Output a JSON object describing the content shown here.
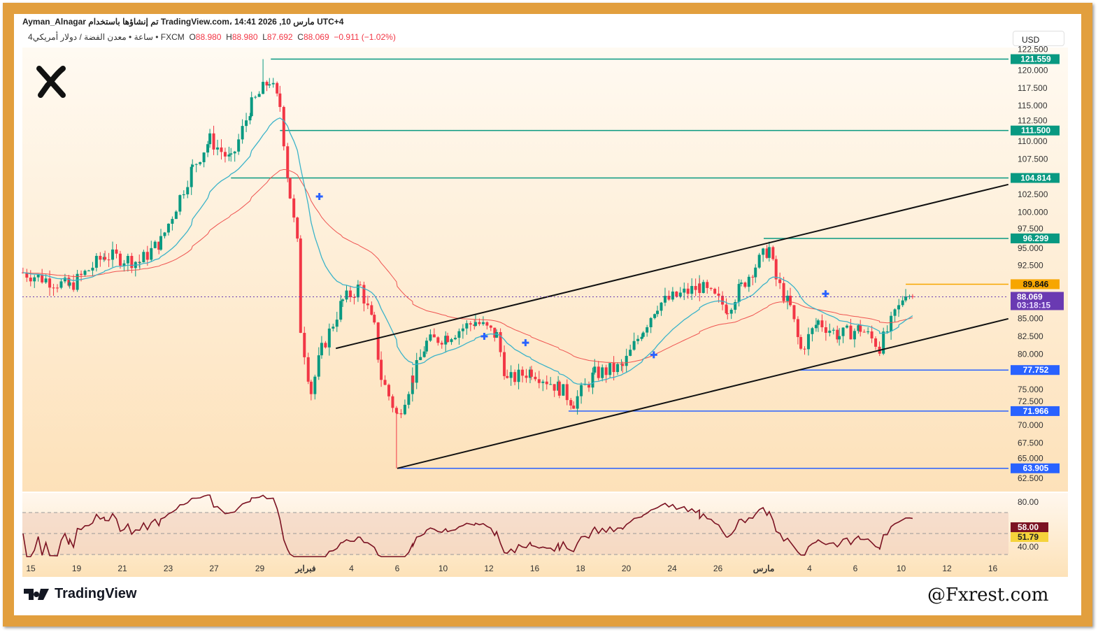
{
  "header": {
    "line1": "Ayman_Alnagar تم إنشاؤها باستخدام TradingView.com، 14:41 2026 ,10 مارس UTC+4",
    "symbol": "4ساعة • معدن الفضة / دولار أمريكي • FXCM",
    "open_label": "O",
    "open": "88.980",
    "high_label": "H",
    "high": "88.980",
    "low_label": "L",
    "low": "87.692",
    "close_label": "C",
    "close": "88.069",
    "change": "−0.911 (−1.02%)"
  },
  "currency": "USD",
  "footer": {
    "brand": "TradingView",
    "watermark": "@Fxrest.com"
  },
  "colors": {
    "up": "#089981",
    "down": "#f23645",
    "ema_fast": "#3bb3c9",
    "ema_slow": "#ef5350",
    "resistance": "#089981",
    "support": "#2962ff",
    "current": "#6a3ab2",
    "rsi": "#7b1222",
    "frame": "#e29f3e"
  },
  "chart_data": {
    "type": "candlestick",
    "x_tick_labels": [
      "15",
      "19",
      "21",
      "23",
      "27",
      "29",
      "فبراير",
      "4",
      "6",
      "10",
      "12",
      "16",
      "18",
      "20",
      "24",
      "26",
      "مارس",
      "4",
      "6",
      "10",
      "12",
      "16"
    ],
    "y_ticks": [
      "122.500",
      "120.000",
      "117.500",
      "115.000",
      "112.500",
      "110.000",
      "107.500",
      "102.500",
      "100.000",
      "97.500",
      "95.000",
      "92.500",
      "85.000",
      "82.500",
      "80.000",
      "75.000",
      "72.500",
      "70.000",
      "67.500",
      "65.000",
      "62.500"
    ],
    "ylim": [
      62.5,
      122.5
    ],
    "price_path_note_x_unit": "x-tick index",
    "price_path": [
      [
        -0.17,
        91.5
      ],
      [
        0.85,
        89.5
      ],
      [
        1.62,
        93.9
      ],
      [
        2.38,
        93
      ],
      [
        2.84,
        95.9
      ],
      [
        3.53,
        106.2
      ],
      [
        3.91,
        110.2
      ],
      [
        4.37,
        107.2
      ],
      [
        4.82,
        115.1
      ],
      [
        5.21,
        118.6
      ],
      [
        5.44,
        115
      ],
      [
        5.66,
        102.3
      ],
      [
        5.82,
        95.4
      ],
      [
        5.89,
        83.6
      ],
      [
        6.12,
        74.7
      ],
      [
        6.35,
        80.6
      ],
      [
        6.81,
        87.5
      ],
      [
        7.19,
        89.5
      ],
      [
        7.5,
        83.6
      ],
      [
        7.65,
        76.7
      ],
      [
        8.0,
        71.3
      ],
      [
        8.34,
        76.7
      ],
      [
        8.64,
        81.6
      ],
      [
        9.1,
        82.6
      ],
      [
        9.71,
        84.6
      ],
      [
        10.17,
        82.6
      ],
      [
        10.4,
        76.2
      ],
      [
        10.93,
        77.7
      ],
      [
        11.54,
        75.2
      ],
      [
        11.85,
        73.2
      ],
      [
        12.31,
        77.2
      ],
      [
        12.92,
        78.2
      ],
      [
        13.37,
        83.6
      ],
      [
        13.68,
        87
      ],
      [
        14.6,
        89.5
      ],
      [
        15.21,
        86.5
      ],
      [
        15.51,
        89.5
      ],
      [
        15.82,
        92.5
      ],
      [
        16.12,
        94.9
      ],
      [
        16.27,
        90.5
      ],
      [
        16.58,
        86.5
      ],
      [
        16.81,
        80.6
      ],
      [
        17.19,
        84.6
      ],
      [
        17.65,
        82.6
      ],
      [
        18.11,
        83.6
      ],
      [
        18.53,
        81.1
      ],
      [
        18.95,
        86.5
      ],
      [
        19.1,
        89
      ],
      [
        19.25,
        88.069
      ]
    ],
    "levels": [
      {
        "price": 121.559,
        "label": "121.559",
        "from": 5.24,
        "kind": "resistance"
      },
      {
        "price": 111.5,
        "label": "111.500",
        "from": 5.44,
        "kind": "resistance"
      },
      {
        "price": 104.814,
        "label": "104.814",
        "from": 4.37,
        "kind": "resistance"
      },
      {
        "price": 96.299,
        "label": "96.299",
        "from": 16.0,
        "kind": "resistance"
      },
      {
        "price": 89.846,
        "label": "89.846",
        "from": 19.1,
        "kind": "orange"
      },
      {
        "price": 77.752,
        "label": "77.752",
        "from": 16.78,
        "kind": "support"
      },
      {
        "price": 71.966,
        "label": "71.966",
        "from": 11.74,
        "kind": "support"
      },
      {
        "price": 63.905,
        "label": "63.905",
        "from": 8.0,
        "kind": "support"
      }
    ],
    "current_price": {
      "value": 88.069,
      "label": "88.069",
      "countdown": "03:18:15"
    },
    "channel": {
      "upper": [
        [
          6.66,
          80.8
        ],
        [
          21.34,
          103.9
        ]
      ],
      "lower": [
        [
          8.0,
          63.9
        ],
        [
          21.34,
          84.98
        ]
      ]
    },
    "cross_markers": [
      [
        6.3,
        102.2
      ],
      [
        9.9,
        82.5
      ],
      [
        10.8,
        81.6
      ],
      [
        13.6,
        79.9
      ],
      [
        17.35,
        88.5
      ]
    ],
    "rsi": {
      "ticks": [
        "80.00",
        "40.00"
      ],
      "bands": [
        70,
        50,
        30
      ],
      "value": "58.00",
      "ma_value": "51.79",
      "ylim": [
        25,
        85
      ]
    }
  }
}
